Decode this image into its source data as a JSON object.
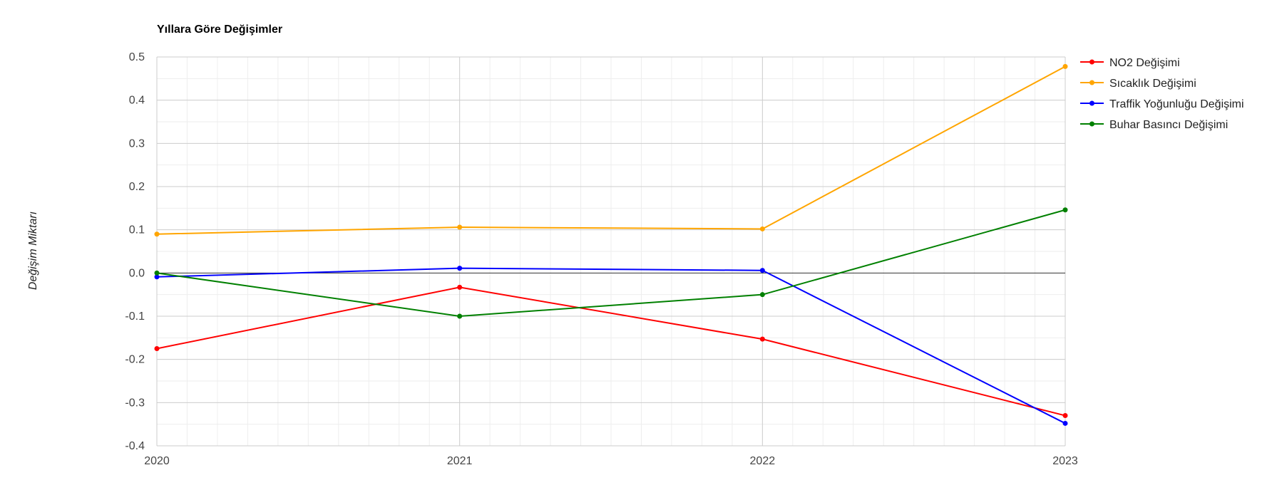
{
  "chart_data": {
    "type": "line",
    "title": "Yıllara Göre Değişimler",
    "xlabel": "",
    "ylabel": "Değişim Miktarı",
    "x": [
      "2020",
      "2021",
      "2022",
      "2023"
    ],
    "ylim": [
      -0.4,
      0.5
    ],
    "yticks": [
      "0.5",
      "0.4",
      "0.3",
      "0.2",
      "0.1",
      "0.0",
      "-0.1",
      "-0.2",
      "-0.3",
      "-0.4"
    ],
    "ytick_values": [
      0.5,
      0.4,
      0.3,
      0.2,
      0.1,
      0.0,
      -0.1,
      -0.2,
      -0.3,
      -0.4
    ],
    "grid": true,
    "legend_position": "right",
    "series": [
      {
        "name": "NO2 Değişimi",
        "color": "#ff0000",
        "values": [
          -0.175,
          -0.033,
          -0.153,
          -0.33
        ]
      },
      {
        "name": "Sıcaklık Değişimi",
        "color": "#ffa500",
        "values": [
          0.09,
          0.106,
          0.102,
          0.478
        ]
      },
      {
        "name": "Traffik Yoğunluğu Değişimi",
        "color": "#0000ff",
        "values": [
          -0.009,
          0.011,
          0.006,
          -0.348
        ]
      },
      {
        "name": "Buhar Basıncı Değişimi",
        "color": "#008000",
        "values": [
          0.0,
          -0.1,
          -0.05,
          0.146
        ]
      }
    ]
  }
}
